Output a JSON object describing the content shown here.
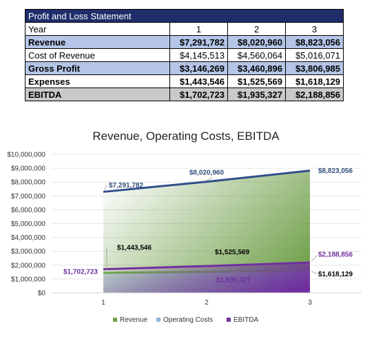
{
  "table": {
    "title": "Profit and Loss Statement",
    "header": {
      "label": "Year",
      "years": [
        "1",
        "2",
        "3"
      ]
    },
    "rows": [
      {
        "label": "Revenue",
        "values": [
          "$7,291,782",
          "$8,020,960",
          "$8,823,056"
        ]
      },
      {
        "label": "Cost of Revenue",
        "values": [
          "$4,145,513",
          "$4,560,064",
          "$5,016,071"
        ]
      },
      {
        "label": "Gross Profit",
        "values": [
          "$3,146,269",
          "$3,460,896",
          "$3,806,985"
        ]
      },
      {
        "label": "Expenses",
        "values": [
          "$1,443,546",
          "$1,525,569",
          "$1,618,129"
        ]
      },
      {
        "label": "EBITDA",
        "values": [
          "$1,702,723",
          "$1,935,327",
          "$2,188,856"
        ]
      }
    ]
  },
  "chart_data": {
    "type": "area",
    "title": "Revenue, Operating Costs, EBITDA",
    "categories": [
      "1",
      "2",
      "3"
    ],
    "ylim": [
      0,
      10000000
    ],
    "yticks": [
      "$0",
      "$1,000,000",
      "$2,000,000",
      "$3,000,000",
      "$4,000,000",
      "$5,000,000",
      "$6,000,000",
      "$7,000,000",
      "$8,000,000",
      "$9,000,000",
      "$10,000,000"
    ],
    "legend_position": "bottom",
    "series": [
      {
        "name": "Revenue",
        "values": [
          7291782,
          8020960,
          8823056
        ],
        "labels": [
          "$7,291,782",
          "$8,020,960",
          "$8,823,056"
        ],
        "fill": "#70a04a",
        "line": "#2f4f8a",
        "label_color": "#2f4f7a"
      },
      {
        "name": "Operating Costs",
        "values": [
          1443546,
          1525569,
          1618129
        ],
        "labels": [
          "$1,443,546",
          "$1,525,569",
          "$1,618,129"
        ],
        "fill": "#8fb3d9",
        "line": "#70ad47",
        "label_color": "#000000"
      },
      {
        "name": "EBITDA",
        "values": [
          1702723,
          1935327,
          2188856
        ],
        "labels": [
          "$1,702,723",
          "$1,935,327",
          "$2,188,856"
        ],
        "fill": "#7030a0",
        "line": "#7030a0",
        "label_color": "#7030a0"
      }
    ]
  }
}
